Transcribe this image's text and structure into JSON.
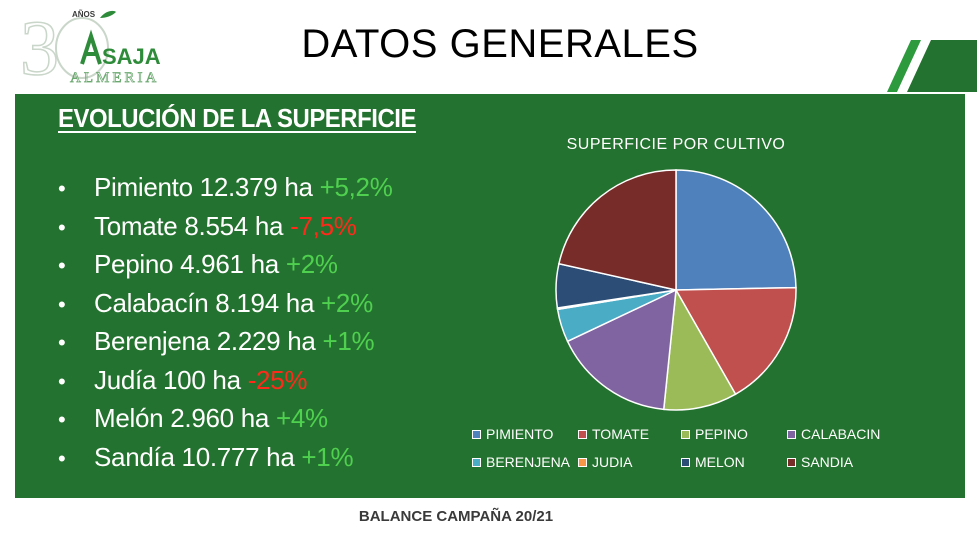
{
  "header": {
    "title": "DATOS GENERALES",
    "logo_number": "3",
    "logo_anios": "AÑOS",
    "logo_brand": "SAJA",
    "logo_region": "ALMERIA",
    "brand_color": "#24722f"
  },
  "section": {
    "heading": "EVOLUCIÓN DE LA SUPERFICIE",
    "items": [
      {
        "text": "Pimiento 12.379 ha ",
        "change": "+5,2%",
        "trend": "pos"
      },
      {
        "text": "Tomate 8.554 ha ",
        "change": "-7,5%",
        "trend": "neg"
      },
      {
        "text": "Pepino 4.961 ha ",
        "change": "+2%",
        "trend": "pos"
      },
      {
        "text": "Calabacín 8.194 ha ",
        "change": "+2%",
        "trend": "pos"
      },
      {
        "text": "Berenjena 2.229 ha ",
        "change": "+1%",
        "trend": "pos"
      },
      {
        "text": "Judía 100 ha ",
        "change": "-25%",
        "trend": "neg"
      },
      {
        "text": "Melón 2.960 ha ",
        "change": "+4%",
        "trend": "pos"
      },
      {
        "text": "Sandía 10.777 ha ",
        "change": "+1%",
        "trend": "pos"
      }
    ]
  },
  "chart_data": {
    "type": "pie",
    "title": "SUPERFICIE POR CULTIVO",
    "categories": [
      "PIMIENTO",
      "TOMATE",
      "PEPINO",
      "CALABACIN",
      "BERENJENA",
      "JUDIA",
      "MELON",
      "SANDIA"
    ],
    "values": [
      12379,
      8554,
      4961,
      8194,
      2229,
      100,
      2960,
      10777
    ],
    "colors": [
      "#4f81bd",
      "#c0504d",
      "#9bbb59",
      "#8064a2",
      "#4bacc6",
      "#f79646",
      "#2c4d75",
      "#772c2a"
    ],
    "legend_position": "bottom"
  },
  "footer": {
    "text": "BALANCE CAMPAÑA 20/21"
  }
}
